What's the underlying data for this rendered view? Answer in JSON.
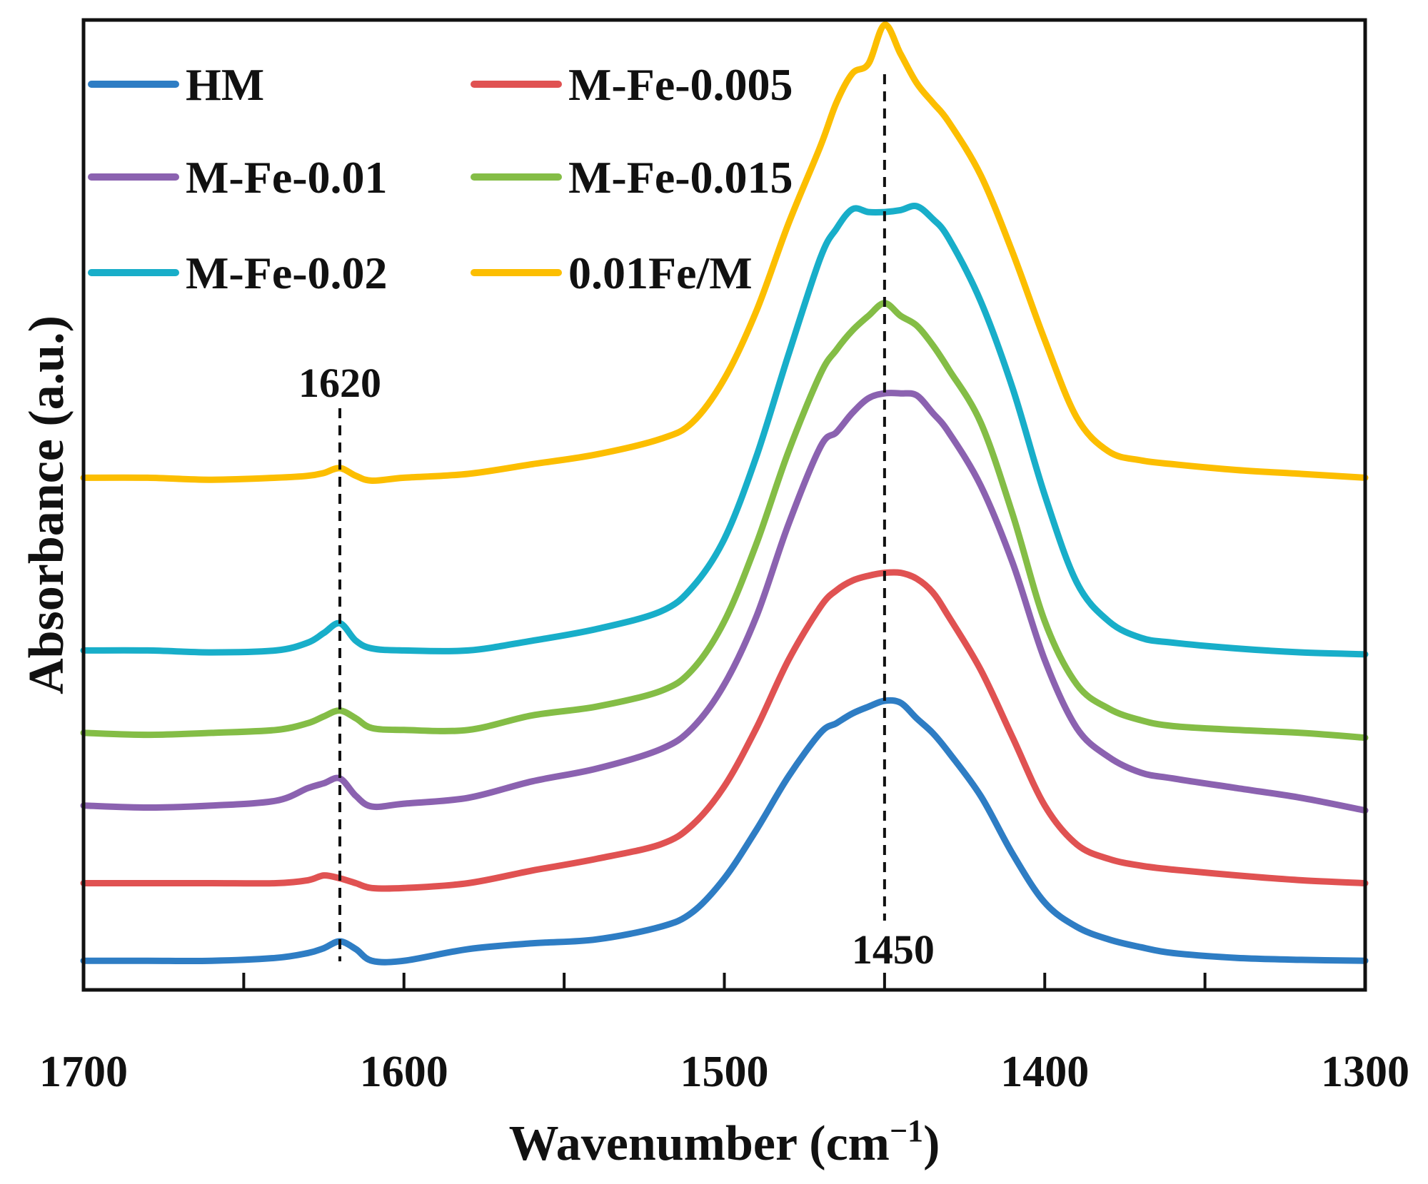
{
  "chart_data": {
    "type": "line",
    "title": "",
    "xlabel": "Wavenumber (cm",
    "xlabel_sup": "−1",
    "xlabel_close": ")",
    "ylabel": "Absorbance (a.u.)",
    "xlim": [
      1700,
      1300
    ],
    "x_reversed": true,
    "ylim": [
      0,
      100
    ],
    "y_ticks_shown": false,
    "grid": false,
    "legend": "top-left, two columns",
    "x_ticks": [
      1700,
      1600,
      1500,
      1400,
      1300
    ],
    "x_tick_labels": [
      "1700",
      "1600",
      "1500",
      "1400",
      "1300"
    ],
    "annotations": [
      {
        "label": "1620",
        "x": 1620
      },
      {
        "label": "1450",
        "x": 1450
      }
    ],
    "x": [
      1700,
      1680,
      1660,
      1640,
      1630,
      1625,
      1620,
      1615,
      1610,
      1600,
      1580,
      1560,
      1540,
      1520,
      1510,
      1500,
      1490,
      1480,
      1470,
      1465,
      1460,
      1455,
      1450,
      1445,
      1440,
      1435,
      1430,
      1420,
      1410,
      1400,
      1390,
      1380,
      1370,
      1360,
      1340,
      1320,
      1300
    ],
    "series": [
      {
        "name": "HM",
        "color": "#2E7DC4",
        "values": [
          3.0,
          3.0,
          3.0,
          3.3,
          3.8,
          4.3,
          5.0,
          4.2,
          3.0,
          3.0,
          4.2,
          4.8,
          5.2,
          6.5,
          8.0,
          11.5,
          16.5,
          22.0,
          26.5,
          27.5,
          28.5,
          29.2,
          29.8,
          29.6,
          28.0,
          26.5,
          24.5,
          20.0,
          14.0,
          9.0,
          6.5,
          5.2,
          4.4,
          3.8,
          3.3,
          3.1,
          3.0
        ]
      },
      {
        "name": "M-Fe-0.005",
        "color": "#E05252",
        "values": [
          11.0,
          11.0,
          11.0,
          11.0,
          11.3,
          11.8,
          11.5,
          11.0,
          10.5,
          10.5,
          11.0,
          12.3,
          13.5,
          15.0,
          17.0,
          21.0,
          27.0,
          34.0,
          39.5,
          41.2,
          42.2,
          42.7,
          43.0,
          43.0,
          42.4,
          41.0,
          38.5,
          33.0,
          26.0,
          19.0,
          15.0,
          13.5,
          12.8,
          12.4,
          11.8,
          11.3,
          11.0
        ]
      },
      {
        "name": "M-Fe-0.01",
        "color": "#8B62B0",
        "values": [
          19.0,
          18.8,
          19.0,
          19.5,
          20.8,
          21.3,
          21.8,
          20.0,
          18.9,
          19.2,
          19.8,
          21.5,
          22.8,
          24.8,
          27.0,
          31.5,
          38.5,
          48.0,
          56.0,
          57.5,
          59.5,
          61.0,
          61.5,
          61.5,
          61.3,
          59.5,
          57.5,
          52.0,
          44.0,
          34.0,
          27.0,
          24.0,
          22.4,
          21.8,
          20.8,
          19.8,
          18.5
        ]
      },
      {
        "name": "M-Fe-0.015",
        "color": "#84BD46",
        "values": [
          26.5,
          26.3,
          26.5,
          26.8,
          27.5,
          28.2,
          28.8,
          28.0,
          27.0,
          26.8,
          26.8,
          28.3,
          29.2,
          30.8,
          33.0,
          38.0,
          46.0,
          55.5,
          63.5,
          66.0,
          68.0,
          69.5,
          70.8,
          69.5,
          68.5,
          66.5,
          64.0,
          58.5,
          49.0,
          38.0,
          31.5,
          29.0,
          27.8,
          27.2,
          26.8,
          26.5,
          26.0
        ]
      },
      {
        "name": "M-Fe-0.02",
        "color": "#18AEC9",
        "values": [
          35.0,
          35.0,
          34.8,
          35.0,
          35.8,
          36.8,
          37.8,
          36.0,
          35.2,
          35.0,
          35.0,
          36.0,
          37.2,
          39.0,
          41.5,
          46.5,
          55.0,
          65.5,
          75.5,
          78.5,
          80.5,
          80.2,
          80.2,
          80.4,
          80.8,
          79.5,
          77.5,
          71.0,
          62.0,
          51.0,
          42.0,
          38.0,
          36.3,
          35.8,
          35.2,
          34.8,
          34.6
        ]
      },
      {
        "name": "0.01Fe/M",
        "color": "#FCBE00",
        "values": [
          52.8,
          52.8,
          52.6,
          52.8,
          53.0,
          53.3,
          53.8,
          53.0,
          52.5,
          52.8,
          53.2,
          54.2,
          55.2,
          56.8,
          58.5,
          63.0,
          70.0,
          79.0,
          87.0,
          91.5,
          94.5,
          95.5,
          99.5,
          96.5,
          93.5,
          91.5,
          89.5,
          84.0,
          76.0,
          67.0,
          59.0,
          55.5,
          54.6,
          54.2,
          53.6,
          53.2,
          52.8
        ]
      }
    ]
  }
}
